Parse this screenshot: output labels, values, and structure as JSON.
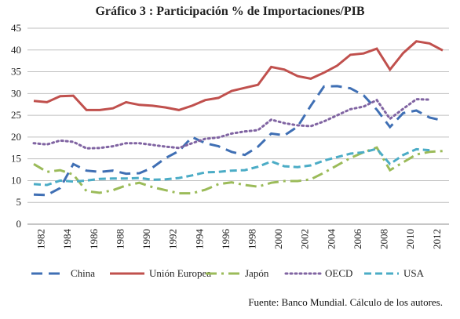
{
  "title": "Gráfico 3 : Participación %  de Importaciones/PIB",
  "source": "Fuente: Banco Mundial. Cálculo de los autores.",
  "chart_data": {
    "type": "line",
    "title": "Gráfico 3 : Participación %  de Importaciones/PIB",
    "xlabel": "",
    "ylabel": "",
    "xlim": [
      1982,
      2013
    ],
    "ylim": [
      0,
      45
    ],
    "yticks": [
      0,
      5,
      10,
      15,
      20,
      25,
      30,
      35,
      40,
      45
    ],
    "xticks": [
      "1982",
      "1984",
      "1986",
      "1988",
      "1990",
      "1992",
      "1994",
      "1996",
      "1998",
      "2000",
      "2002",
      "2004",
      "2006",
      "2008",
      "2010",
      "2012"
    ],
    "grid": "horizontal",
    "legend_position": "bottom",
    "x": [
      1982,
      1983,
      1984,
      1985,
      1986,
      1987,
      1988,
      1989,
      1990,
      1991,
      1992,
      1993,
      1994,
      1995,
      1996,
      1997,
      1998,
      1999,
      2000,
      2001,
      2002,
      2003,
      2004,
      2005,
      2006,
      2007,
      2008,
      2009,
      2010,
      2011,
      2012,
      2013
    ],
    "series": [
      {
        "name": "China",
        "color": "#3f6fb4",
        "dash": "long-dash",
        "values": [
          6.8,
          6.7,
          8.3,
          13.8,
          12.3,
          12.0,
          12.3,
          11.6,
          11.7,
          13.0,
          15.2,
          16.8,
          20.0,
          18.6,
          17.9,
          16.6,
          15.9,
          17.8,
          20.8,
          20.4,
          22.4,
          27.2,
          31.6,
          31.7,
          31.2,
          29.6,
          26.3,
          22.3,
          25.5,
          26.1,
          24.5,
          23.8
        ]
      },
      {
        "name": "Unión Europea",
        "color": "#c0504d",
        "dash": "solid",
        "values": [
          28.3,
          28.0,
          29.4,
          29.5,
          26.2,
          26.2,
          26.6,
          28.0,
          27.4,
          27.2,
          26.8,
          26.2,
          27.2,
          28.5,
          29.0,
          30.6,
          31.3,
          32.0,
          36.1,
          35.5,
          34.0,
          33.4,
          34.8,
          36.4,
          38.9,
          39.2,
          40.3,
          35.5,
          39.3,
          42.0,
          41.5,
          39.9
        ]
      },
      {
        "name": "Japón",
        "color": "#9bbb59",
        "dash": "dash-dot",
        "values": [
          13.8,
          12.0,
          12.4,
          11.4,
          7.6,
          7.2,
          7.8,
          8.9,
          9.5,
          8.5,
          7.8,
          7.1,
          7.1,
          7.9,
          9.2,
          9.6,
          9.0,
          8.6,
          9.5,
          9.9,
          9.9,
          10.3,
          11.8,
          13.5,
          15.2,
          16.5,
          17.6,
          12.4,
          14.2,
          16.0,
          16.6,
          16.8
        ]
      },
      {
        "name": "OECD",
        "color": "#8064a2",
        "dash": "dotted",
        "values": [
          18.6,
          18.3,
          19.2,
          18.9,
          17.4,
          17.5,
          17.9,
          18.6,
          18.6,
          18.2,
          17.8,
          17.5,
          18.6,
          19.6,
          19.9,
          20.8,
          21.3,
          21.6,
          24.0,
          23.2,
          22.7,
          22.5,
          23.6,
          25.0,
          26.4,
          27.0,
          28.5,
          24.2,
          26.5,
          28.7,
          28.6,
          null
        ]
      },
      {
        "name": "USA",
        "color": "#4bacc6",
        "dash": "dash",
        "values": [
          9.2,
          9.0,
          10.0,
          9.8,
          10.0,
          10.4,
          10.5,
          10.5,
          10.6,
          10.2,
          10.3,
          10.6,
          11.2,
          11.9,
          12.0,
          12.3,
          12.4,
          13.2,
          14.4,
          13.3,
          13.1,
          13.5,
          14.6,
          15.4,
          16.2,
          16.5,
          17.3,
          13.8,
          15.9,
          17.2,
          17.0,
          null
        ]
      }
    ]
  }
}
